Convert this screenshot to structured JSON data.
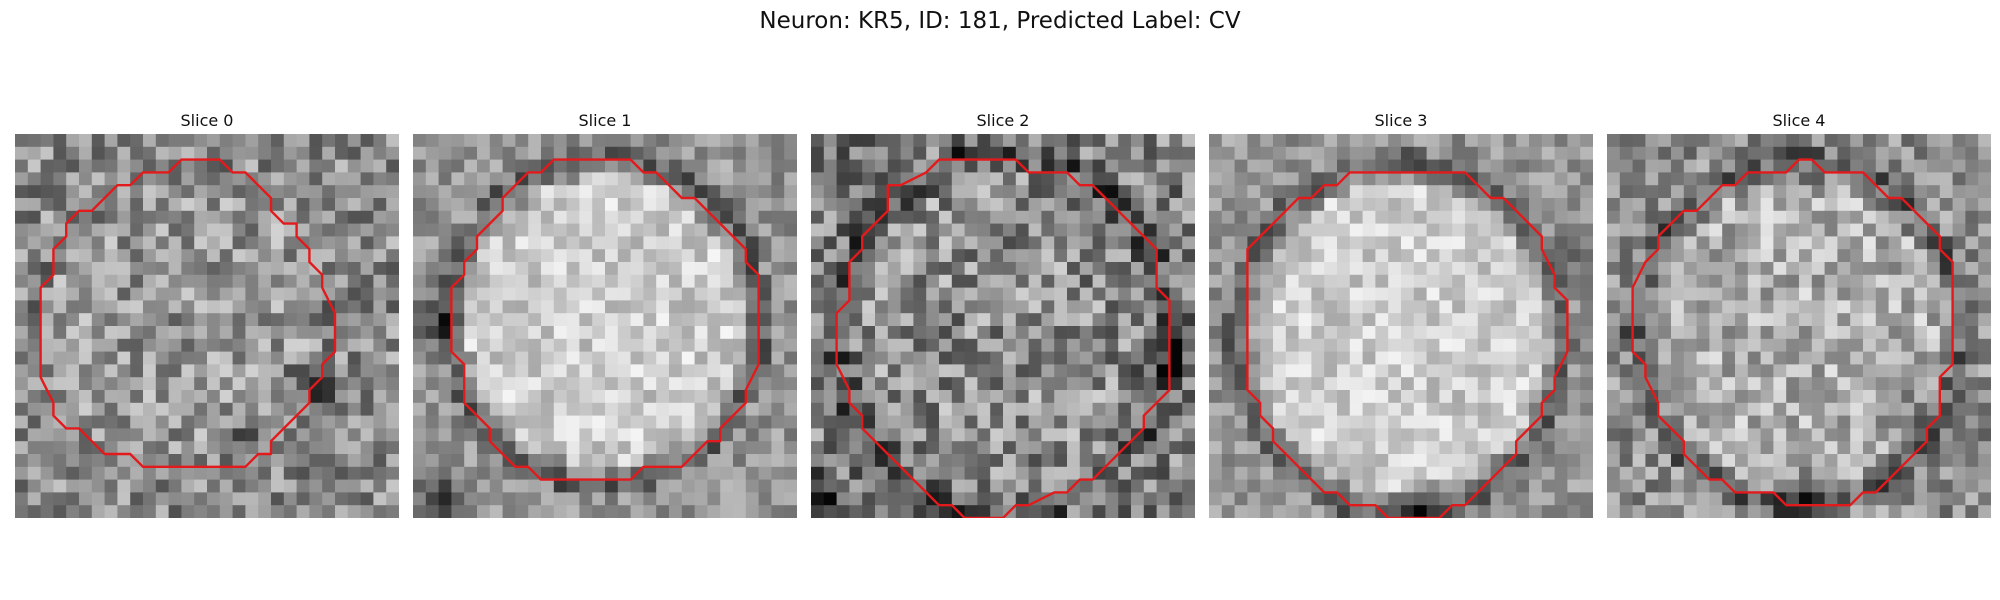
{
  "figure": {
    "title": "Neuron: KR5, ID: 181, Predicted Label: CV",
    "contour_color": "#e31a1c",
    "grid_size": 30
  },
  "slices": [
    {
      "label": "Slice 0",
      "image": "noisy-grayscale-cell-crop",
      "contour": "red-cell-outline"
    },
    {
      "label": "Slice 1",
      "image": "noisy-grayscale-cell-crop",
      "contour": "red-cell-outline"
    },
    {
      "label": "Slice 2",
      "image": "noisy-grayscale-cell-crop",
      "contour": "red-cell-outline"
    },
    {
      "label": "Slice 3",
      "image": "noisy-grayscale-cell-crop",
      "contour": "red-cell-outline"
    },
    {
      "label": "Slice 4",
      "image": "noisy-grayscale-cell-crop",
      "contour": "red-cell-outline"
    }
  ]
}
